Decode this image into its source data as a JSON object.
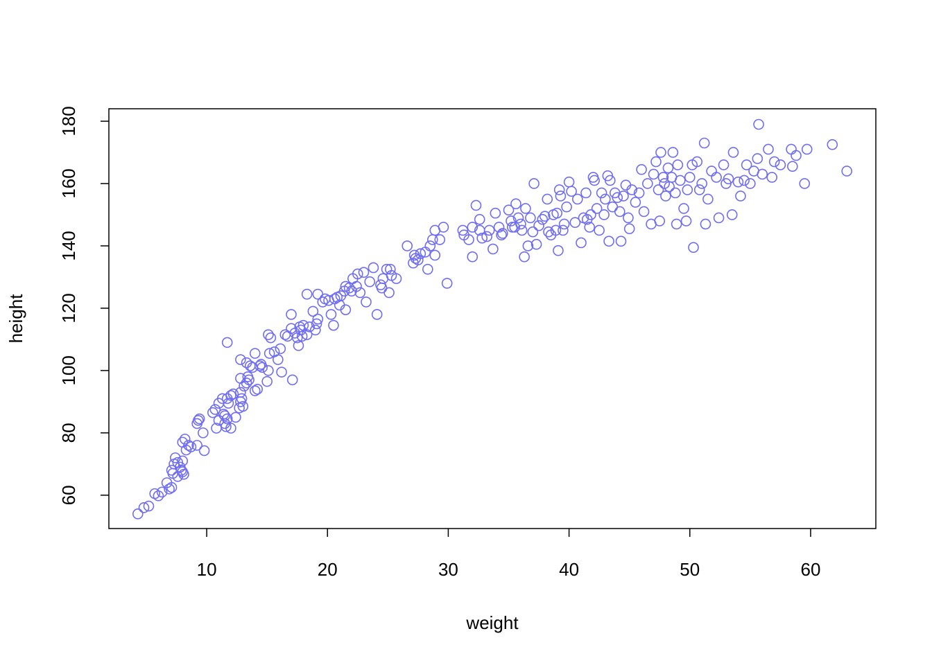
{
  "chart_data": {
    "type": "scatter",
    "x_label": "weight",
    "y_label": "height",
    "color": "#6f6cf6",
    "xlim": [
      1.9,
      65.4
    ],
    "ylim": [
      49.3,
      184
    ],
    "xticks": [
      10,
      20,
      30,
      40,
      50,
      60
    ],
    "yticks": [
      60,
      80,
      100,
      120,
      140,
      160,
      180
    ],
    "grid": false,
    "x": [
      4.3,
      4.8,
      5.2,
      5.7,
      6.0,
      6.3,
      6.7,
      6.9,
      7.1,
      7.2,
      7.1,
      7.3,
      7.4,
      7.6,
      7.6,
      7.8,
      8.0,
      8.0,
      8.1,
      7.9,
      8.0,
      8.2,
      8.3,
      8.5,
      8.7,
      9.2,
      9.3,
      9.4,
      9.2,
      9.7,
      9.8,
      10.5,
      10.7,
      10.8,
      11,
      11,
      11.3,
      11.4,
      11.5,
      11.5,
      11.6,
      11.7,
      11.7,
      11.8,
      12,
      12.0,
      12.2,
      12.4,
      12.7,
      12.8,
      12.9,
      12.8,
      12.8,
      12.8,
      13,
      13.1,
      13.3,
      13.4,
      13.5,
      13.3,
      13.6,
      13.8,
      14,
      14,
      14.2,
      14.4,
      14.6,
      14.5,
      11.7,
      15,
      15.1,
      15.2,
      15.3,
      15.1,
      15.6,
      15.9,
      16.1,
      16.2,
      16.5,
      16.7,
      17,
      17,
      17.1,
      17.3,
      17.5,
      17.6,
      17.7,
      17.8,
      17.9,
      18,
      18.3,
      18.3,
      18.5,
      18.8,
      19,
      19.1,
      19.2,
      19.2,
      19.6,
      19.8,
      20.1,
      20.3,
      20.5,
      20.6,
      20.8,
      21,
      21.1,
      21.4,
      21.5,
      21.5,
      21.8,
      22,
      22.1,
      22.4,
      22.5,
      22.7,
      23,
      23.2,
      23.5,
      23.8,
      24.1,
      24.4,
      24.5,
      24.6,
      24.9,
      25.2,
      25.1,
      25.3,
      25.7,
      26.6,
      27.1,
      27.2,
      27.3,
      27.5,
      27.7,
      28.1,
      28.3,
      28.5,
      28.7,
      28.9,
      28.9,
      29.3,
      29.6,
      29.9,
      31.2,
      31.3,
      31.7,
      32,
      32,
      32.3,
      32.6,
      32.6,
      32.8,
      33.2,
      33.4,
      33.7,
      33.9,
      34.2,
      34.4,
      34.5,
      35,
      35.2,
      35.3,
      35.6,
      35.5,
      35.8,
      36,
      36.1,
      36.3,
      36.4,
      36.6,
      36.8,
      37,
      37.1,
      37.3,
      37.5,
      37.8,
      38,
      38.2,
      38.3,
      38.5,
      38.7,
      38.9,
      39,
      39.2,
      39.3,
      39.1,
      39.5,
      39.6,
      39.8,
      40,
      40.2,
      40.5,
      40.7,
      41,
      41.2,
      41.4,
      41.5,
      41.7,
      41.8,
      42,
      42.1,
      42.3,
      42.5,
      42.7,
      42.9,
      43,
      43.2,
      43.4,
      43.3,
      43.6,
      43.8,
      44,
      44.2,
      44.3,
      44.5,
      44.7,
      44.9,
      45,
      45.2,
      45.5,
      45.8,
      46,
      46.2,
      46.5,
      46.8,
      47,
      47.2,
      47.4,
      47.5,
      47.6,
      47.8,
      47.9,
      48,
      48.2,
      48.3,
      48.5,
      48.6,
      48.8,
      48.9,
      49,
      49.2,
      49.5,
      49.7,
      49.8,
      50,
      50.2,
      50.3,
      50.6,
      50.8,
      51,
      51.2,
      51.3,
      51.5,
      51.8,
      52.2,
      52.4,
      52.8,
      53,
      53.2,
      53.5,
      53.6,
      54,
      54.2,
      54.5,
      54.7,
      55,
      55.3,
      55.6,
      55.7,
      56,
      56.5,
      56.8,
      57,
      57.5,
      58.4,
      58.5,
      58.8,
      59.5,
      59.7,
      61.8,
      63
    ],
    "y": [
      54,
      56,
      56.5,
      60.5,
      59.8,
      61,
      64,
      62,
      62.5,
      67,
      68,
      70,
      72,
      66,
      70.5,
      69,
      67.5,
      71,
      66.7,
      68,
      77,
      78,
      74.5,
      76,
      75.5,
      83,
      84,
      84.5,
      76,
      80,
      74.3,
      86.5,
      87.5,
      81.5,
      84,
      89.5,
      91,
      86,
      83,
      85.5,
      82,
      84.5,
      91,
      89.5,
      92,
      81.5,
      92.5,
      85,
      88,
      90,
      91,
      93,
      97.5,
      103.5,
      88.5,
      95,
      96,
      98,
      97,
      102.5,
      101.5,
      101,
      93.5,
      105.5,
      94,
      101.5,
      101,
      102,
      109,
      96.5,
      100,
      105.5,
      110.5,
      111.5,
      106,
      103.5,
      107,
      99.5,
      111.5,
      111,
      113.5,
      118,
      97,
      112,
      110.5,
      108,
      114,
      113,
      111,
      114.5,
      111.5,
      124.5,
      114,
      119,
      113,
      115,
      116.5,
      124.5,
      122,
      123,
      122.5,
      118,
      114.5,
      123,
      123.5,
      121,
      124,
      125.5,
      119.5,
      127,
      126.5,
      125.5,
      129.5,
      127,
      131,
      125,
      131.5,
      122,
      128.5,
      133,
      118,
      127.5,
      126.5,
      129.5,
      132.5,
      132.5,
      125,
      130.5,
      129.5,
      140,
      134.5,
      137,
      136,
      135.5,
      137.5,
      138,
      132.5,
      140,
      142,
      145,
      137,
      142,
      146,
      128,
      145,
      143.5,
      142,
      146,
      136.5,
      153,
      148.5,
      145,
      142.5,
      143,
      145,
      139,
      150.5,
      146,
      143.5,
      144,
      151.5,
      148,
      146,
      153.5,
      146,
      149,
      147,
      145,
      136.5,
      152,
      140,
      149,
      144.5,
      160,
      140.5,
      146.5,
      148.5,
      149.5,
      155,
      144.5,
      143.5,
      150,
      145,
      150.5,
      158,
      156,
      138.5,
      145,
      147,
      152.5,
      160.5,
      157.5,
      147.5,
      155,
      141,
      149,
      157,
      148.5,
      146,
      150,
      162,
      161,
      152,
      145,
      157,
      150,
      155,
      162.5,
      161,
      141.5,
      152.5,
      157,
      155.5,
      151,
      141.5,
      156,
      159.5,
      149,
      145.5,
      158,
      154,
      157,
      164.5,
      151,
      160,
      147,
      163,
      167,
      158,
      148,
      170,
      162,
      160,
      156,
      165,
      159,
      162,
      170,
      157,
      147,
      166,
      161,
      152,
      148,
      158,
      162,
      166,
      139.5,
      167,
      158,
      160,
      173,
      147,
      155,
      164,
      162,
      149,
      166,
      160,
      161.5,
      150,
      170,
      160.5,
      156,
      161,
      166,
      160,
      164,
      168,
      179,
      163,
      171,
      162,
      167,
      166,
      171,
      165.5,
      169,
      160,
      171,
      172.5,
      164
    ]
  }
}
